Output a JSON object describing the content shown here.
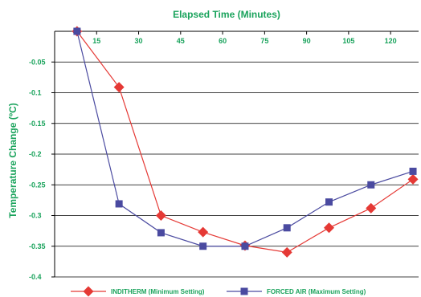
{
  "chart_data": {
    "type": "line",
    "title": "Elapsed Time (Minutes)",
    "xlabel": "",
    "ylabel": "Temperature Change (ºC)",
    "x_ticks": [
      15,
      30,
      45,
      60,
      75,
      90,
      105,
      120
    ],
    "y_ticks": [
      -0.05,
      -0.1,
      -0.15,
      -0.2,
      -0.25,
      -0.3,
      -0.35,
      -0.4
    ],
    "y_tick_labels": [
      "-0.05",
      "-0.1",
      "-0.15",
      "-0.2",
      "-0.25",
      "-0.3",
      "-0.35",
      "-0.4"
    ],
    "xlim": [
      0,
      130
    ],
    "ylim": [
      -0.4,
      0
    ],
    "grid": "horizontal",
    "legend_position": "bottom",
    "x": [
      8,
      23,
      38,
      53,
      68,
      83,
      98,
      113,
      128
    ],
    "series": [
      {
        "name": "INDITHERM (Minimum Setting)",
        "color": "#e53935",
        "marker": "diamond",
        "values": [
          0,
          -0.091,
          -0.3,
          -0.327,
          -0.349,
          -0.36,
          -0.32,
          -0.288,
          -0.241
        ]
      },
      {
        "name": "FORCED AIR (Maximum Setting)",
        "color": "#4a4aa0",
        "marker": "square",
        "values": [
          0,
          -0.281,
          -0.328,
          -0.35,
          -0.35,
          -0.32,
          -0.278,
          -0.25,
          -0.228
        ]
      }
    ],
    "colors": {
      "text": "#1aa35c",
      "axis": "#000000",
      "grid": "#000000"
    }
  }
}
